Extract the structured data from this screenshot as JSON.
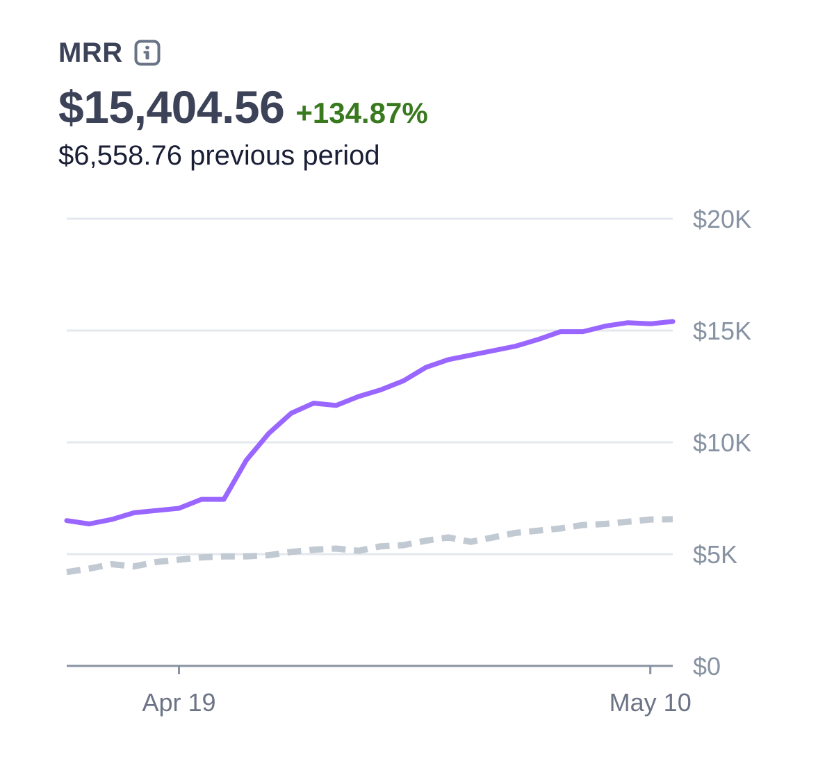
{
  "header": {
    "title": "MRR",
    "info_icon": "info-icon",
    "value": "$15,404.56",
    "change": "+134.87%",
    "change_color": "#3a7a1f",
    "previous_value": "$6,558.76",
    "previous_label": "previous period"
  },
  "chart_data": {
    "type": "line",
    "grid": true,
    "y_axis_position": "right",
    "ylim": [
      0,
      20000
    ],
    "y_ticks": [
      0,
      5000,
      10000,
      15000,
      20000
    ],
    "y_tick_labels": [
      "$0",
      "$5K",
      "$10K",
      "$15K",
      "$20K"
    ],
    "xlim": [
      "2020-04-14",
      "2020-05-11"
    ],
    "x_ticks": [
      "2020-04-19",
      "2020-05-10"
    ],
    "x_tick_labels": [
      "Apr 19",
      "May 10"
    ],
    "series": [
      {
        "color": "#9966ff",
        "style": "solid",
        "x": [
          "2020-04-14",
          "2020-04-15",
          "2020-04-16",
          "2020-04-17",
          "2020-04-18",
          "2020-04-19",
          "2020-04-20",
          "2020-04-21",
          "2020-04-22",
          "2020-04-23",
          "2020-04-24",
          "2020-04-25",
          "2020-04-26",
          "2020-04-27",
          "2020-04-28",
          "2020-04-29",
          "2020-04-30",
          "2020-05-01",
          "2020-05-02",
          "2020-05-03",
          "2020-05-04",
          "2020-05-05",
          "2020-05-06",
          "2020-05-07",
          "2020-05-08",
          "2020-05-09",
          "2020-05-10",
          "2020-05-11"
        ],
        "values": [
          6500,
          6350,
          6550,
          6850,
          6950,
          7050,
          7450,
          7450,
          9200,
          10400,
          11300,
          11750,
          11650,
          12050,
          12350,
          12750,
          13350,
          13700,
          13900,
          14100,
          14300,
          14600,
          14950,
          14950,
          15200,
          15350,
          15300,
          15404.56
        ]
      },
      {
        "color": "#c1c9d2",
        "style": "dashed",
        "x": [
          "2020-04-14",
          "2020-04-15",
          "2020-04-16",
          "2020-04-17",
          "2020-04-18",
          "2020-04-19",
          "2020-04-20",
          "2020-04-21",
          "2020-04-22",
          "2020-04-23",
          "2020-04-24",
          "2020-04-25",
          "2020-04-26",
          "2020-04-27",
          "2020-04-28",
          "2020-04-29",
          "2020-04-30",
          "2020-05-01",
          "2020-05-02",
          "2020-05-03",
          "2020-05-04",
          "2020-05-05",
          "2020-05-06",
          "2020-05-07",
          "2020-05-08",
          "2020-05-09",
          "2020-05-10",
          "2020-05-11"
        ],
        "values": [
          4200,
          4350,
          4550,
          4450,
          4650,
          4750,
          4850,
          4900,
          4900,
          4950,
          5100,
          5200,
          5250,
          5150,
          5350,
          5400,
          5600,
          5750,
          5550,
          5750,
          5950,
          6050,
          6150,
          6300,
          6350,
          6450,
          6550,
          6558.76
        ]
      }
    ]
  }
}
